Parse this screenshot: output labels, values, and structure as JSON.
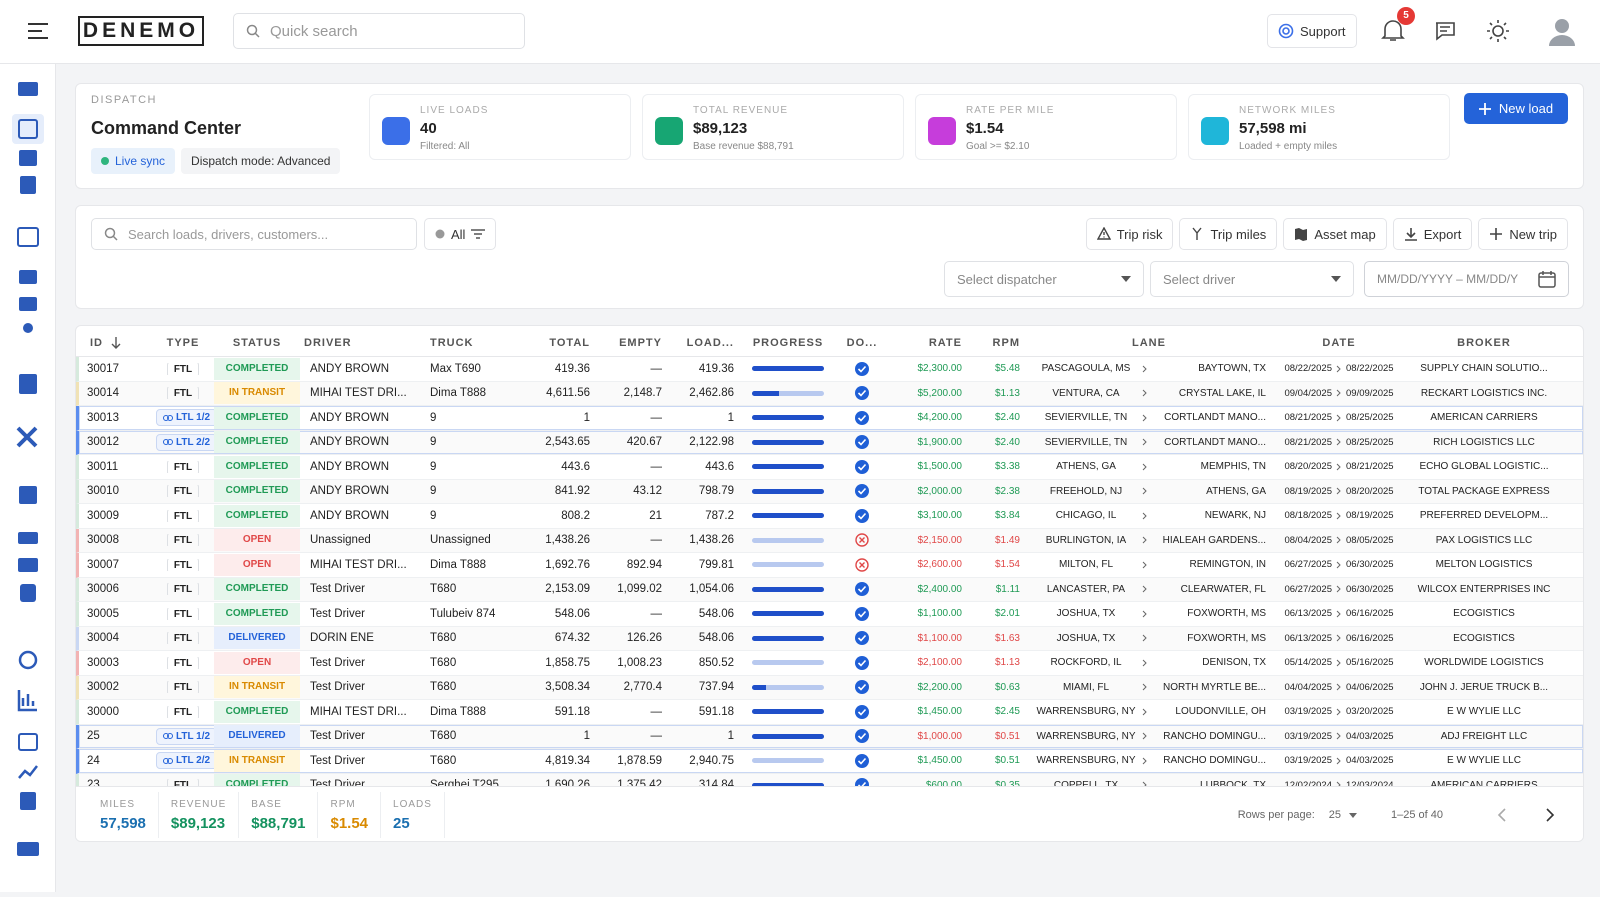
{
  "header": {
    "logo": "DENEMO",
    "search_placeholder": "Quick search",
    "support": "Support",
    "notifications": "5"
  },
  "dispatch": {
    "label": "DISPATCH",
    "title": "Command Center",
    "badges": [
      "Live sync",
      "Dispatch mode: Advanced"
    ],
    "kpis": [
      {
        "label": "LIVE LOADS",
        "value": "40",
        "sub": "Filtered: All",
        "color": "#3b6fe8"
      },
      {
        "label": "TOTAL REVENUE",
        "value": "$89,123",
        "sub": "Base revenue $88,791",
        "color": "#17a673"
      },
      {
        "label": "RATE PER MILE",
        "value": "$1.54",
        "sub": "Goal >= $2.10",
        "color": "#c63ddb"
      },
      {
        "label": "NETWORK MILES",
        "value": "57,598 mi",
        "sub": "Loaded + empty miles",
        "color": "#1fb6d9"
      }
    ],
    "new_load": "New load"
  },
  "toolbar": {
    "search_placeholder": "Search loads, drivers, customers...",
    "filter": "All",
    "buttons": [
      "Trip risk",
      "Trip miles",
      "Asset map",
      "Export",
      "New trip"
    ],
    "selects": [
      "Select dispatcher",
      "Select driver"
    ],
    "date_placeholder": "MM/DD/YYYY – MM/DD/Y"
  },
  "table": {
    "columns": [
      "ID",
      "TYPE",
      "STATUS",
      "DRIVER",
      "TRUCK",
      "TOTAL",
      "EMPTY",
      "LOAD...",
      "PROGRESS",
      "DO...",
      "RATE",
      "RPM",
      "LANE",
      "DATE",
      "BROKER"
    ],
    "rows": [
      {
        "id": "30017",
        "type": "FTL",
        "status": "COMPLETED",
        "driver": "ANDY BROWN",
        "truck": "Max T690",
        "total": "419.36",
        "empty": "—",
        "loaded": "419.36",
        "progress": 100,
        "docs": true,
        "rate": "$2,300.00",
        "rpm": "$5.48",
        "origin": "PASCAGOULA, MS",
        "destination": "BAYTOWN, TX",
        "date_from": "08/22/2025",
        "date_to": "08/22/2025",
        "broker": "SUPPLY CHAIN SOLUTIO..."
      },
      {
        "id": "30014",
        "type": "FTL",
        "status": "IN TRANSIT",
        "driver": "MIHAI TEST DRI...",
        "truck": "Dima T888",
        "total": "4,611.56",
        "empty": "2,148.7",
        "loaded": "2,462.86",
        "progress": 38,
        "docs": true,
        "rate": "$5,200.00",
        "rpm": "$1.13",
        "origin": "VENTURA, CA",
        "destination": "CRYSTAL LAKE, IL",
        "date_from": "09/04/2025",
        "date_to": "09/09/2025",
        "broker": "RECKART LOGISTICS INC."
      },
      {
        "id": "30013",
        "type": "LTL 1/2",
        "status": "COMPLETED",
        "driver": "ANDY BROWN",
        "truck": "9",
        "total": "1",
        "empty": "—",
        "loaded": "1",
        "progress": 100,
        "docs": true,
        "rate": "$4,200.00",
        "rpm": "$2.40",
        "origin": "SEVIERVILLE, TN",
        "destination": "CORTLANDT MANO...",
        "date_from": "08/21/2025",
        "date_to": "08/25/2025",
        "broker": "AMERICAN CARRIERS"
      },
      {
        "id": "30012",
        "type": "LTL 2/2",
        "status": "COMPLETED",
        "driver": "ANDY BROWN",
        "truck": "9",
        "total": "2,543.65",
        "empty": "420.67",
        "loaded": "2,122.98",
        "progress": 100,
        "docs": true,
        "rate": "$1,900.00",
        "rpm": "$2.40",
        "origin": "SEVIERVILLE, TN",
        "destination": "CORTLANDT MANO...",
        "date_from": "08/21/2025",
        "date_to": "08/25/2025",
        "broker": "RICH LOGISTICS LLC"
      },
      {
        "id": "30011",
        "type": "FTL",
        "status": "COMPLETED",
        "driver": "ANDY BROWN",
        "truck": "9",
        "total": "443.6",
        "empty": "—",
        "loaded": "443.6",
        "progress": 100,
        "docs": true,
        "rate": "$1,500.00",
        "rpm": "$3.38",
        "origin": "ATHENS, GA",
        "destination": "MEMPHIS, TN",
        "date_from": "08/20/2025",
        "date_to": "08/21/2025",
        "broker": "ECHO GLOBAL LOGISTIC..."
      },
      {
        "id": "30010",
        "type": "FTL",
        "status": "COMPLETED",
        "driver": "ANDY BROWN",
        "truck": "9",
        "total": "841.92",
        "empty": "43.12",
        "loaded": "798.79",
        "progress": 100,
        "docs": true,
        "rate": "$2,000.00",
        "rpm": "$2.38",
        "origin": "FREEHOLD, NJ",
        "destination": "ATHENS, GA",
        "date_from": "08/19/2025",
        "date_to": "08/20/2025",
        "broker": "TOTAL PACKAGE EXPRESS"
      },
      {
        "id": "30009",
        "type": "FTL",
        "status": "COMPLETED",
        "driver": "ANDY BROWN",
        "truck": "9",
        "total": "808.2",
        "empty": "21",
        "loaded": "787.2",
        "progress": 100,
        "docs": true,
        "rate": "$3,100.00",
        "rpm": "$3.84",
        "origin": "CHICAGO, IL",
        "destination": "NEWARK, NJ",
        "date_from": "08/18/2025",
        "date_to": "08/19/2025",
        "broker": "PREFERRED DEVELOPM..."
      },
      {
        "id": "30008",
        "type": "FTL",
        "status": "OPEN",
        "driver": "Unassigned",
        "truck": "Unassigned",
        "total": "1,438.26",
        "empty": "—",
        "loaded": "1,438.26",
        "progress": 0,
        "docs": false,
        "rate": "$2,150.00",
        "rpm": "$1.49",
        "origin": "BURLINGTON, IA",
        "destination": "HIALEAH GARDENS...",
        "date_from": "08/04/2025",
        "date_to": "08/05/2025",
        "broker": "PAX LOGISTICS LLC"
      },
      {
        "id": "30007",
        "type": "FTL",
        "status": "OPEN",
        "driver": "MIHAI TEST DRI...",
        "truck": "Dima T888",
        "total": "1,692.76",
        "empty": "892.94",
        "loaded": "799.81",
        "progress": 0,
        "docs": false,
        "rate": "$2,600.00",
        "rpm": "$1.54",
        "origin": "MILTON, FL",
        "destination": "REMINGTON, IN",
        "date_from": "06/27/2025",
        "date_to": "06/30/2025",
        "broker": "MELTON LOGISTICS"
      },
      {
        "id": "30006",
        "type": "FTL",
        "status": "COMPLETED",
        "driver": "Test Driver",
        "truck": "T680",
        "total": "2,153.09",
        "empty": "1,099.02",
        "loaded": "1,054.06",
        "progress": 100,
        "docs": true,
        "rate": "$2,400.00",
        "rpm": "$1.11",
        "origin": "LANCASTER, PA",
        "destination": "CLEARWATER, FL",
        "date_from": "06/27/2025",
        "date_to": "06/30/2025",
        "broker": "WILCOX ENTERPRISES INC"
      },
      {
        "id": "30005",
        "type": "FTL",
        "status": "COMPLETED",
        "driver": "Test Driver",
        "truck": "Tulubeiv 874",
        "total": "548.06",
        "empty": "—",
        "loaded": "548.06",
        "progress": 100,
        "docs": true,
        "rate": "$1,100.00",
        "rpm": "$2.01",
        "origin": "JOSHUA, TX",
        "destination": "FOXWORTH, MS",
        "date_from": "06/13/2025",
        "date_to": "06/16/2025",
        "broker": "ECOGISTICS"
      },
      {
        "id": "30004",
        "type": "FTL",
        "status": "DELIVERED",
        "driver": "DORIN ENE",
        "truck": "T680",
        "total": "674.32",
        "empty": "126.26",
        "loaded": "548.06",
        "progress": 100,
        "docs": true,
        "rate": "$1,100.00",
        "rpm": "$1.63",
        "origin": "JOSHUA, TX",
        "destination": "FOXWORTH, MS",
        "date_from": "06/13/2025",
        "date_to": "06/16/2025",
        "broker": "ECOGISTICS"
      },
      {
        "id": "30003",
        "type": "FTL",
        "status": "OPEN",
        "driver": "Test Driver",
        "truck": "T680",
        "total": "1,858.75",
        "empty": "1,008.23",
        "loaded": "850.52",
        "progress": 0,
        "docs": true,
        "rate": "$2,100.00",
        "rpm": "$1.13",
        "origin": "ROCKFORD, IL",
        "destination": "DENISON, TX",
        "date_from": "05/14/2025",
        "date_to": "05/16/2025",
        "broker": "WORLDWIDE LOGISTICS"
      },
      {
        "id": "30002",
        "type": "FTL",
        "status": "IN TRANSIT",
        "driver": "Test Driver",
        "truck": "T680",
        "total": "3,508.34",
        "empty": "2,770.4",
        "loaded": "737.94",
        "progress": 20,
        "docs": true,
        "rate": "$2,200.00",
        "rpm": "$0.63",
        "origin": "MIAMI, FL",
        "destination": "NORTH MYRTLE BE...",
        "date_from": "04/04/2025",
        "date_to": "04/06/2025",
        "broker": "JOHN J. JERUE TRUCK B..."
      },
      {
        "id": "30000",
        "type": "FTL",
        "status": "COMPLETED",
        "driver": "MIHAI TEST DRI...",
        "truck": "Dima T888",
        "total": "591.18",
        "empty": "—",
        "loaded": "591.18",
        "progress": 100,
        "docs": true,
        "rate": "$1,450.00",
        "rpm": "$2.45",
        "origin": "WARRENSBURG, NY",
        "destination": "LOUDONVILLE, OH",
        "date_from": "03/19/2025",
        "date_to": "03/20/2025",
        "broker": "E W WYLIE LLC"
      },
      {
        "id": "25",
        "type": "LTL 1/2",
        "status": "DELIVERED",
        "driver": "Test Driver",
        "truck": "T680",
        "total": "1",
        "empty": "—",
        "loaded": "1",
        "progress": 100,
        "docs": true,
        "rate": "$1,000.00",
        "rpm": "$0.51",
        "origin": "WARRENSBURG, NY",
        "destination": "RANCHO DOMINGU...",
        "date_from": "03/19/2025",
        "date_to": "04/03/2025",
        "broker": "ADJ FREIGHT LLC"
      },
      {
        "id": "24",
        "type": "LTL 2/2",
        "status": "IN TRANSIT",
        "driver": "Test Driver",
        "truck": "T680",
        "total": "4,819.34",
        "empty": "1,878.59",
        "loaded": "2,940.75",
        "progress": 0,
        "docs": true,
        "rate": "$1,450.00",
        "rpm": "$0.51",
        "origin": "WARRENSBURG, NY",
        "destination": "RANCHO DOMINGU...",
        "date_from": "03/19/2025",
        "date_to": "04/03/2025",
        "broker": "E W WYLIE LLC"
      },
      {
        "id": "23",
        "type": "FTL",
        "status": "COMPLETED",
        "driver": "Test Driver",
        "truck": "Serghei T295",
        "total": "1,690.26",
        "empty": "1,375.42",
        "loaded": "314.84",
        "progress": 100,
        "docs": true,
        "rate": "$600.00",
        "rpm": "$0.35",
        "origin": "COPPELL, TX",
        "destination": "LUBBOCK, TX",
        "date_from": "12/02/2024",
        "date_to": "12/03/2024",
        "broker": "AMERICAN CARRIERS"
      }
    ]
  },
  "summary": [
    {
      "label": "MILES",
      "value": "57,598",
      "color": "#1a6fb0"
    },
    {
      "label": "REVENUE",
      "value": "$89,123",
      "color": "#14925f"
    },
    {
      "label": "BASE",
      "value": "$88,791",
      "color": "#14925f"
    },
    {
      "label": "RPM",
      "value": "$1.54",
      "color": "#d98a00"
    },
    {
      "label": "LOADS",
      "value": "25",
      "color": "#1a6fb0"
    }
  ],
  "pagination": {
    "rows_per_page_label": "Rows per page:",
    "rows_per_page": "25",
    "range": "1–25 of 40"
  }
}
